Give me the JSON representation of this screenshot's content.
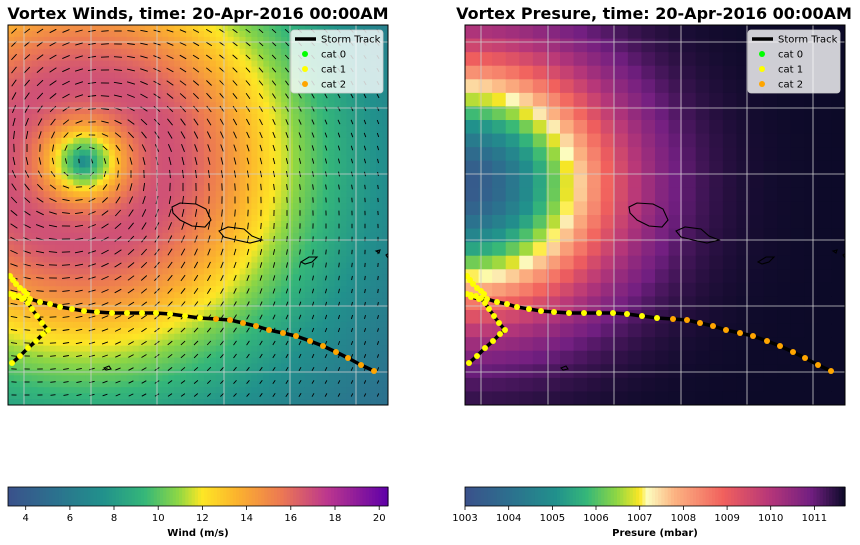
{
  "chart_data": [
    {
      "type": "heatmap",
      "panel": "winds",
      "title": "Vortex Winds, time: 20-Apr-2016 00:00AM",
      "colorbar": {
        "label": "Wind (m/s)",
        "colormap": "viridis-plasma",
        "range": [
          3.2,
          20.4
        ],
        "ticks": [
          "4",
          "6",
          "8",
          "10",
          "12",
          "14",
          "16",
          "18",
          "20"
        ],
        "tick_values": [
          4,
          6,
          8,
          10,
          12,
          14,
          16,
          18,
          20
        ]
      },
      "grid": true,
      "legend": {
        "placement": "top-right",
        "entries": [
          {
            "label": "Storm Track",
            "color": "#000000",
            "kind": "line"
          },
          {
            "label": "cat 0",
            "color": "#00ff00",
            "kind": "marker"
          },
          {
            "label": "cat 1",
            "color": "#ffff00",
            "kind": "marker"
          },
          {
            "label": "cat 2",
            "color": "#ffa500",
            "kind": "marker"
          }
        ]
      },
      "vectors": "wind-arrows"
    },
    {
      "type": "heatmap",
      "panel": "pressure",
      "title": "Vortex Presure, time: 20-Apr-2016 00:00AM",
      "colorbar": {
        "label": "Presure (mbar)",
        "colormap": "viridis-magma",
        "range": [
          1003,
          1011.7
        ],
        "ticks": [
          "1003",
          "1004",
          "1005",
          "1006",
          "1007",
          "1008",
          "1009",
          "1010",
          "1011"
        ],
        "tick_values": [
          1003,
          1004,
          1005,
          1006,
          1007,
          1008,
          1009,
          1010,
          1011
        ]
      },
      "grid": true,
      "legend": {
        "placement": "top-right",
        "entries": [
          {
            "label": "Storm Track",
            "color": "#000000",
            "kind": "line"
          },
          {
            "label": "cat 0",
            "color": "#00ff00",
            "kind": "marker"
          },
          {
            "label": "cat 1",
            "color": "#ffff00",
            "kind": "marker"
          },
          {
            "label": "cat 2",
            "color": "#ffa500",
            "kind": "marker"
          }
        ]
      }
    }
  ],
  "colors": {
    "track": "#000000",
    "cat0": "#00ff00",
    "cat1": "#ffff00",
    "cat2": "#ffa500",
    "gridline": "#cfcfcf"
  }
}
